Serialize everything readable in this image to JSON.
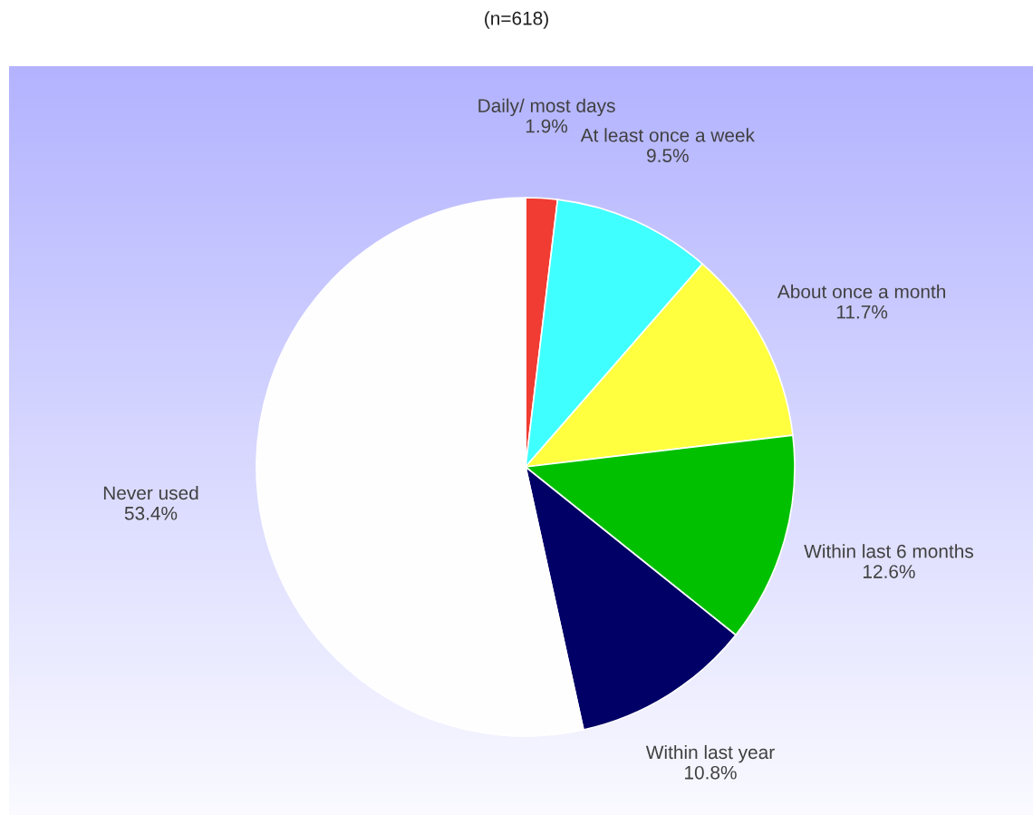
{
  "chart_data": {
    "type": "pie",
    "title": "(n=618)",
    "categories": [
      "Daily/ most days",
      "At least once a week",
      "About once a month",
      "Within last 6 months",
      "Within last year",
      "Never used"
    ],
    "values": [
      1.9,
      9.5,
      11.7,
      12.6,
      10.8,
      53.4
    ],
    "colors": [
      "#f03c32",
      "#40ffff",
      "#ffff40",
      "#00c000",
      "#000066",
      "#fefeff"
    ],
    "value_labels": [
      "1.9%",
      "9.5%",
      "11.7%",
      "12.6%",
      "10.8%",
      "53.4%"
    ]
  }
}
